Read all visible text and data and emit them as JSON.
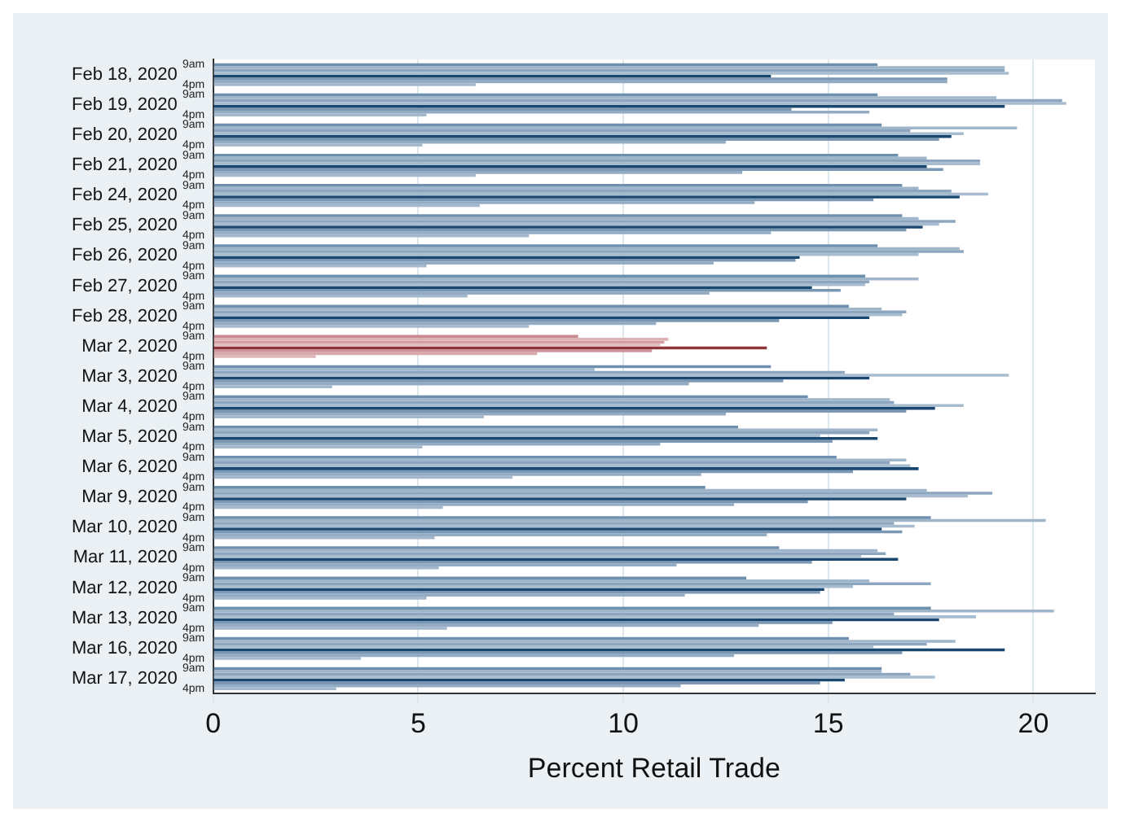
{
  "chart_data": {
    "type": "bar",
    "orientation": "horizontal",
    "xlabel": "Percent Retail Trade",
    "categories": [
      "Feb 18, 2020",
      "Feb 19, 2020",
      "Feb 20, 2020",
      "Feb 21, 2020",
      "Feb 24, 2020",
      "Feb 25, 2020",
      "Feb 26, 2020",
      "Feb 27, 2020",
      "Feb 28, 2020",
      "Mar 2, 2020",
      "Mar 3, 2020",
      "Mar 4, 2020",
      "Mar 5, 2020",
      "Mar 6, 2020",
      "Mar 9, 2020",
      "Mar 10, 2020",
      "Mar 11, 2020",
      "Mar 12, 2020",
      "Mar 13, 2020",
      "Mar 16, 2020",
      "Mar 17, 2020"
    ],
    "xlim": [
      0,
      21.5
    ],
    "xticks": [
      0,
      5,
      10,
      15,
      20
    ],
    "grid": "x",
    "legend": false,
    "series": [
      {
        "name": "9am",
        "colors": [
          "#6f8fae",
          "#6f8fae",
          "#6f8fae",
          "#6f8fae",
          "#6f8fae",
          "#6f8fae",
          "#6f8fae",
          "#6f8fae",
          "#6f8fae",
          "#c98a8f",
          "#6f8fae",
          "#6f8fae",
          "#6f8fae",
          "#6f8fae",
          "#6f8fae",
          "#6f8fae",
          "#6f8fae",
          "#6f8fae",
          "#6f8fae",
          "#6f8fae",
          "#6f8fae"
        ],
        "values": [
          16.2,
          16.2,
          16.3,
          16.7,
          16.8,
          16.8,
          16.2,
          15.9,
          15.5,
          8.9,
          13.6,
          14.5,
          12.8,
          15.2,
          12.0,
          17.5,
          13.8,
          13.0,
          17.5,
          15.5,
          16.3
        ]
      },
      {
        "colors": [
          "#9fb5ca",
          "#9fb5ca",
          "#9fb5ca",
          "#9fb5ca",
          "#9fb5ca",
          "#9fb5ca",
          "#9fb5ca",
          "#9fb5ca",
          "#9fb5ca",
          "#ddb3b6",
          "#9fb5ca",
          "#9fb5ca",
          "#9fb5ca",
          "#9fb5ca",
          "#9fb5ca",
          "#9fb5ca",
          "#9fb5ca",
          "#9fb5ca",
          "#9fb5ca",
          "#9fb5ca",
          "#9fb5ca"
        ],
        "values": [
          19.3,
          19.1,
          19.6,
          17.4,
          17.2,
          17.2,
          18.2,
          17.2,
          16.3,
          11.1,
          9.3,
          16.5,
          16.2,
          16.9,
          17.4,
          20.3,
          16.2,
          16.0,
          20.5,
          18.1,
          16.3
        ]
      },
      {
        "colors": [
          "#8ca6bf",
          "#8ca6bf",
          "#8ca6bf",
          "#8ca6bf",
          "#8ca6bf",
          "#8ca6bf",
          "#8ca6bf",
          "#8ca6bf",
          "#8ca6bf",
          "#d49fa3",
          "#8ca6bf",
          "#8ca6bf",
          "#8ca6bf",
          "#8ca6bf",
          "#8ca6bf",
          "#8ca6bf",
          "#8ca6bf",
          "#8ca6bf",
          "#8ca6bf",
          "#8ca6bf",
          "#8ca6bf"
        ],
        "values": [
          19.3,
          20.7,
          17.0,
          18.7,
          18.0,
          18.1,
          18.3,
          16.0,
          16.9,
          11.0,
          15.4,
          16.6,
          16.0,
          16.5,
          19.0,
          16.6,
          16.4,
          17.5,
          16.6,
          17.4,
          17.0
        ]
      },
      {
        "colors": [
          "#a8bccf",
          "#a8bccf",
          "#a8bccf",
          "#a8bccf",
          "#a8bccf",
          "#a8bccf",
          "#a8bccf",
          "#a8bccf",
          "#a8bccf",
          "#e0bcbe",
          "#a8bccf",
          "#a8bccf",
          "#a8bccf",
          "#a8bccf",
          "#a8bccf",
          "#a8bccf",
          "#a8bccf",
          "#a8bccf",
          "#a8bccf",
          "#a8bccf",
          "#a8bccf"
        ],
        "values": [
          19.4,
          20.8,
          18.3,
          18.7,
          18.9,
          17.7,
          17.2,
          15.9,
          16.8,
          10.9,
          19.4,
          18.3,
          14.8,
          17.0,
          18.4,
          17.1,
          15.8,
          15.6,
          18.6,
          16.1,
          17.6
        ]
      },
      {
        "colors": [
          "#1a476f",
          "#1a476f",
          "#1a476f",
          "#1a476f",
          "#1a476f",
          "#1a476f",
          "#1a476f",
          "#1a476f",
          "#1a476f",
          "#90353b",
          "#1a476f",
          "#1a476f",
          "#1a476f",
          "#1a476f",
          "#1a476f",
          "#1a476f",
          "#1a476f",
          "#1a476f",
          "#1a476f",
          "#1a476f",
          "#1a476f"
        ],
        "values": [
          13.6,
          19.3,
          18.0,
          17.4,
          18.2,
          17.3,
          14.3,
          14.6,
          16.0,
          13.5,
          16.0,
          17.6,
          16.2,
          17.2,
          16.9,
          16.3,
          16.7,
          14.9,
          17.7,
          19.3,
          15.4
        ]
      },
      {
        "colors": [
          "#7a97b3",
          "#7a97b3",
          "#7a97b3",
          "#7a97b3",
          "#7a97b3",
          "#7a97b3",
          "#7a97b3",
          "#7a97b3",
          "#7a97b3",
          "#cc9599",
          "#7a97b3",
          "#7a97b3",
          "#7a97b3",
          "#7a97b3",
          "#7a97b3",
          "#7a97b3",
          "#7a97b3",
          "#7a97b3",
          "#7a97b3",
          "#7a97b3",
          "#7a97b3"
        ],
        "values": [
          17.9,
          14.1,
          17.7,
          17.8,
          16.1,
          16.9,
          14.2,
          15.3,
          13.8,
          10.7,
          13.9,
          16.9,
          15.1,
          15.6,
          14.5,
          16.8,
          14.6,
          14.8,
          15.1,
          16.8,
          14.8
        ]
      },
      {
        "colors": [
          "#93abc3",
          "#93abc3",
          "#93abc3",
          "#93abc3",
          "#93abc3",
          "#93abc3",
          "#93abc3",
          "#93abc3",
          "#93abc3",
          "#d8a8ab",
          "#93abc3",
          "#93abc3",
          "#93abc3",
          "#93abc3",
          "#93abc3",
          "#93abc3",
          "#93abc3",
          "#93abc3",
          "#93abc3",
          "#93abc3",
          "#93abc3"
        ],
        "values": [
          17.9,
          16.0,
          12.5,
          12.9,
          13.2,
          13.6,
          12.2,
          12.1,
          10.8,
          7.9,
          11.6,
          12.5,
          10.9,
          11.9,
          12.7,
          13.5,
          11.3,
          11.5,
          13.3,
          12.7,
          11.4
        ]
      },
      {
        "name": "4pm",
        "colors": [
          "#a3b8cc",
          "#a3b8cc",
          "#a3b8cc",
          "#a3b8cc",
          "#a3b8cc",
          "#a3b8cc",
          "#a3b8cc",
          "#a3b8cc",
          "#a3b8cc",
          "#deb6b9",
          "#a3b8cc",
          "#a3b8cc",
          "#a3b8cc",
          "#a3b8cc",
          "#a3b8cc",
          "#a3b8cc",
          "#a3b8cc",
          "#a3b8cc",
          "#a3b8cc",
          "#a3b8cc",
          "#a3b8cc"
        ],
        "values": [
          6.4,
          5.2,
          5.1,
          6.4,
          6.5,
          7.7,
          5.2,
          6.2,
          7.7,
          2.5,
          2.9,
          6.6,
          5.1,
          7.3,
          5.6,
          5.4,
          5.5,
          5.2,
          5.7,
          3.6,
          3.0
        ]
      }
    ]
  }
}
